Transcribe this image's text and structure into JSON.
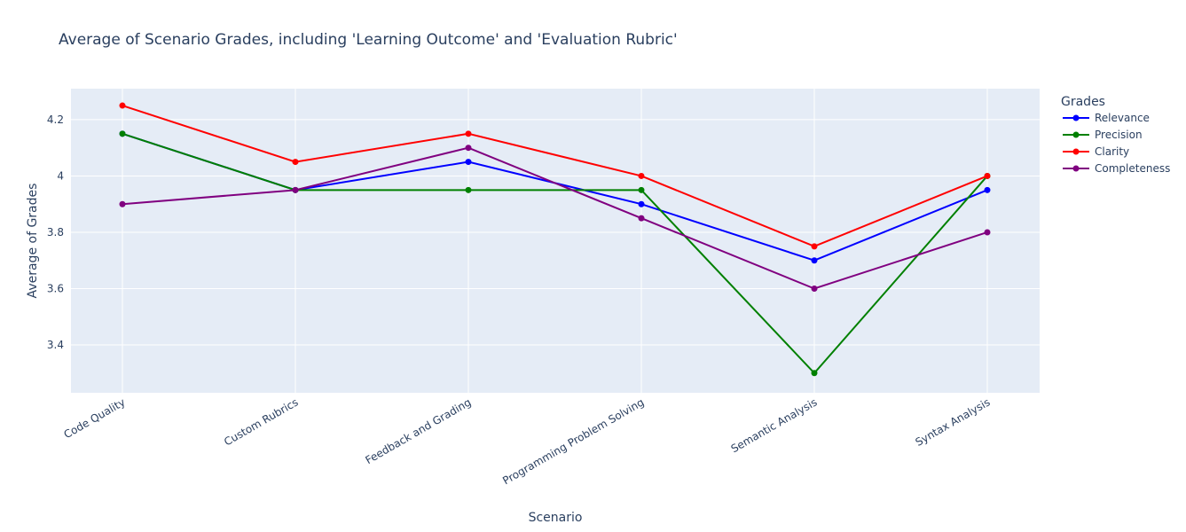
{
  "chart_data": {
    "type": "line",
    "title": "Average of Scenario Grades, including 'Learning Outcome' and 'Evaluation Rubric'",
    "xlabel": "Scenario",
    "ylabel": "Average of Grades",
    "categories": [
      "Code Quality",
      "Custom Rubrics",
      "Feedback and Grading",
      "Programming Problem Solving",
      "Semantic Analysis",
      "Syntax Analysis"
    ],
    "yticks": [
      3.4,
      3.6,
      3.8,
      4,
      4.2
    ],
    "ytick_labels": [
      "3.4",
      "3.6",
      "3.8",
      "4",
      "4.2"
    ],
    "ylim": [
      3.23,
      4.31
    ],
    "grid": true,
    "legend": {
      "title": "Grades",
      "position": "right"
    },
    "series": [
      {
        "name": "Relevance",
        "color": "#0000ff",
        "values": [
          4.15,
          3.95,
          4.05,
          3.9,
          3.7,
          3.95
        ]
      },
      {
        "name": "Precision",
        "color": "#008000",
        "values": [
          4.15,
          3.95,
          3.95,
          3.95,
          3.3,
          4.0
        ]
      },
      {
        "name": "Clarity",
        "color": "#ff0000",
        "values": [
          4.25,
          4.05,
          4.15,
          4.0,
          3.75,
          4.0
        ]
      },
      {
        "name": "Completeness",
        "color": "#800080",
        "values": [
          3.9,
          3.95,
          4.1,
          3.85,
          3.6,
          3.8
        ]
      }
    ]
  }
}
